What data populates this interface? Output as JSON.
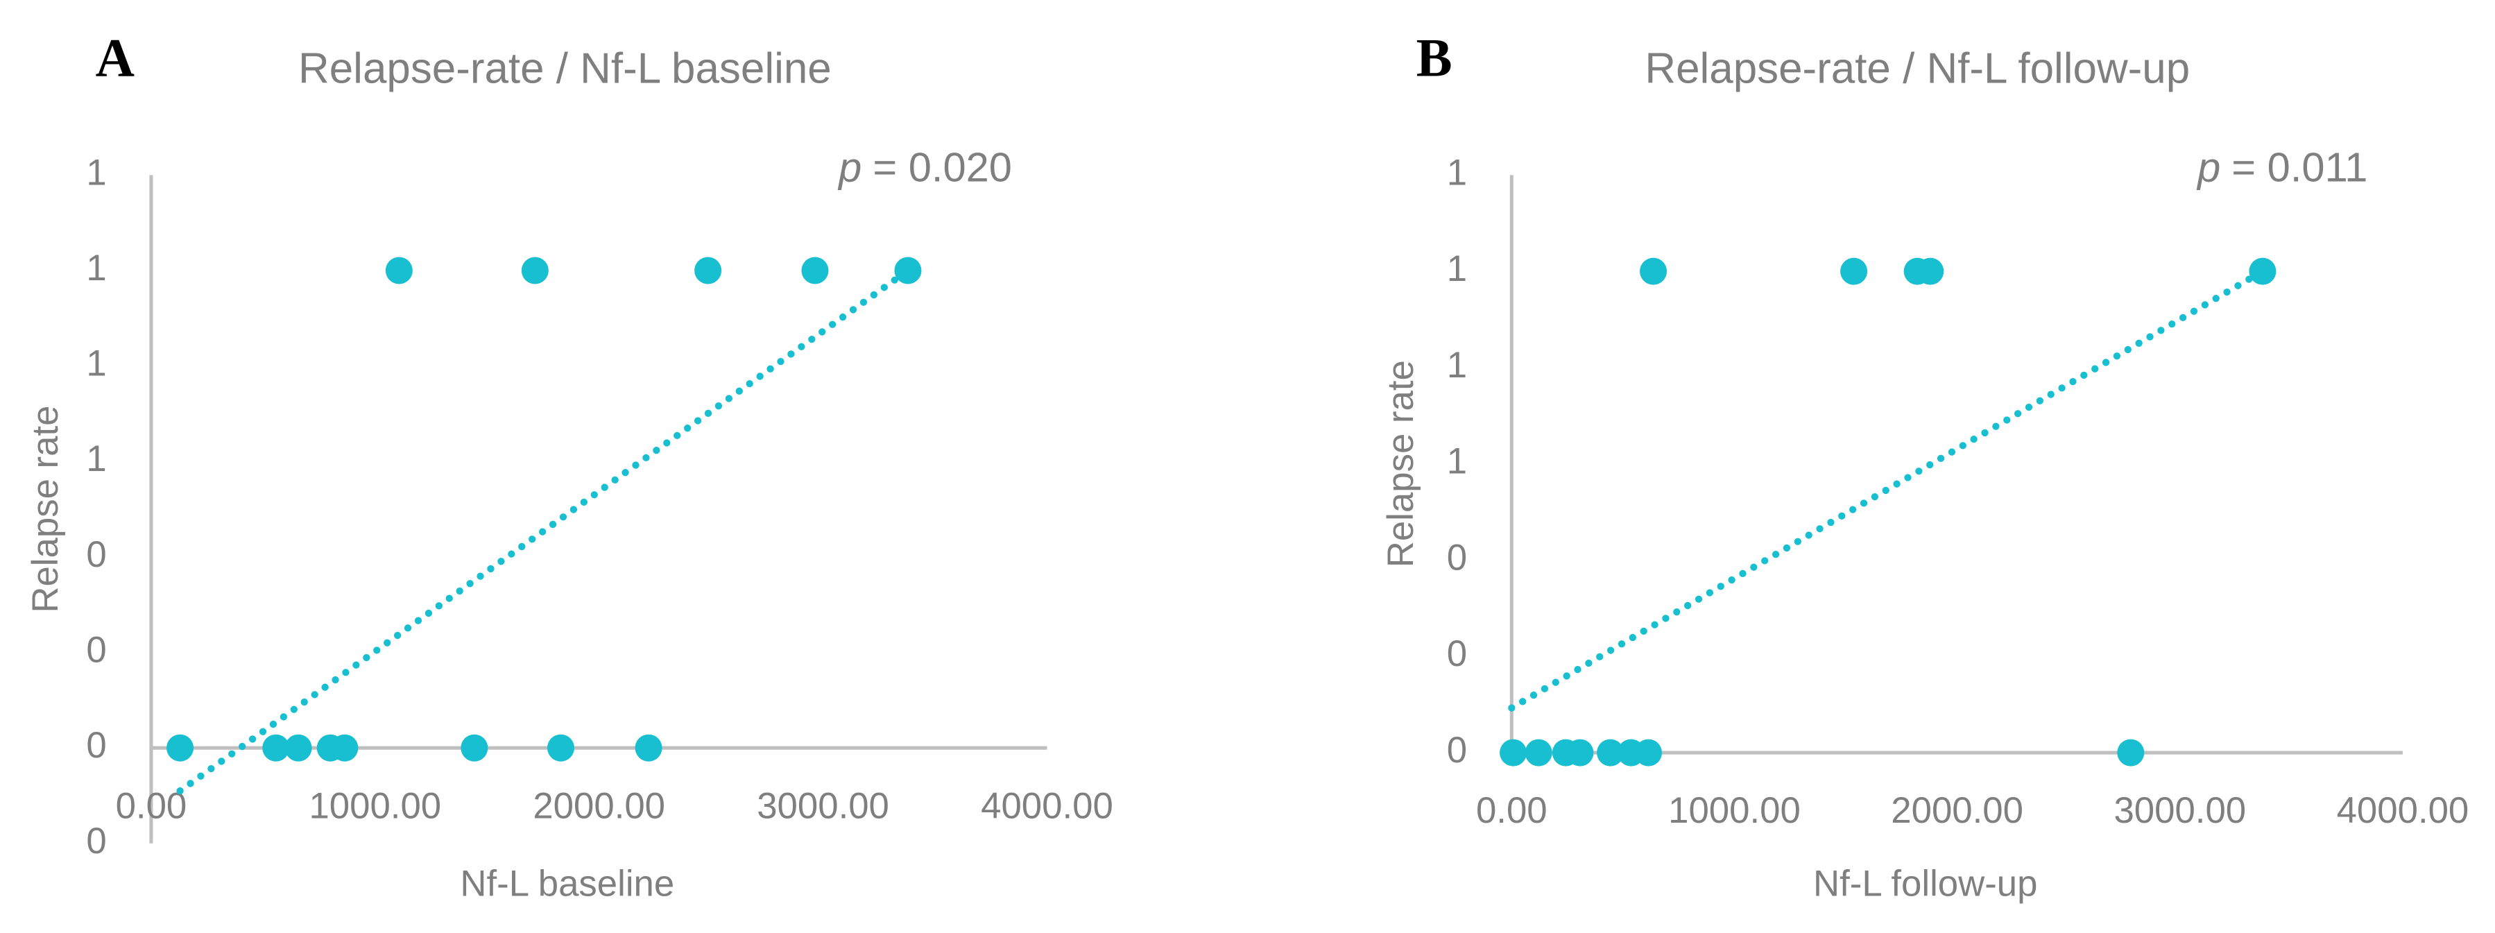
{
  "chart_data": [
    {
      "type": "scatter",
      "panel": "A",
      "title": "Relapse-rate / Nf-L baseline",
      "x_label": "Nf-L baseline",
      "y_label": "Relapse rate",
      "annotation": {
        "symbol": "p",
        "text": "= 0.020"
      },
      "series": [
        {
          "color": "#17bfd0",
          "x": [
            1107,
            1714,
            2486,
            2964,
            3379,
            129,
            557,
            657,
            800,
            864,
            1443,
            1829,
            2221
          ],
          "y": [
            1,
            1,
            1,
            1,
            1,
            0,
            0,
            0,
            0,
            0,
            0,
            0,
            0
          ]
        }
      ],
      "trendline": {
        "color": "#17bfd0",
        "style": "dotted",
        "x": [
          129,
          3379
        ],
        "y": [
          -0.09,
          1.0
        ]
      },
      "xlim": [
        0,
        4000
      ],
      "xticks": [
        {
          "value": 0,
          "label": "0.00"
        },
        {
          "value": 1000,
          "label": "1000.00"
        },
        {
          "value": 2000,
          "label": "2000.00"
        },
        {
          "value": 3000,
          "label": "3000.00"
        },
        {
          "value": 4000,
          "label": "4000.00"
        }
      ],
      "ylim": [
        -0.2,
        1.2
      ],
      "yticks": [
        {
          "value": -0.2,
          "label": "0"
        },
        0,
        {
          "value": 0.2,
          "label": "0"
        },
        {
          "value": 0.4,
          "label": "0"
        },
        {
          "value": 0.6,
          "label": "1"
        },
        {
          "value": 0.8,
          "label": "1"
        },
        1,
        {
          "value": 1.2,
          "label": "1"
        }
      ]
    },
    {
      "type": "scatter",
      "panel": "B",
      "title": "Relapse-rate / Nf-L follow-up",
      "x_label": "Nf-L follow-up",
      "y_label": "Relapse rate",
      "annotation": {
        "symbol": "p",
        "text": "= 0.011"
      },
      "series": [
        {
          "color": "#17bfd0",
          "x": [
            636,
            1536,
            1821,
            1879,
            3371,
            7,
            121,
            243,
            307,
            443,
            536,
            614,
            2779
          ],
          "y": [
            1,
            1,
            1,
            1,
            1,
            0,
            0,
            0,
            0,
            0,
            0,
            0,
            0
          ]
        }
      ],
      "trendline": {
        "color": "#17bfd0",
        "style": "dotted",
        "x": [
          0,
          3371
        ],
        "y": [
          0.093,
          1.0
        ]
      },
      "xlim": [
        0,
        4000
      ],
      "xticks": [
        {
          "value": 0,
          "label": "0.00"
        },
        {
          "value": 1000,
          "label": "1000.00"
        },
        {
          "value": 2000,
          "label": "2000.00"
        },
        {
          "value": 3000,
          "label": "3000.00"
        },
        {
          "value": 4000,
          "label": "4000.00"
        }
      ],
      "ylim": [
        0,
        1.2
      ],
      "yticks": [
        0,
        {
          "value": 0.2,
          "label": "0"
        },
        {
          "value": 0.4,
          "label": "0"
        },
        {
          "value": 0.6,
          "label": "1"
        },
        {
          "value": 0.8,
          "label": "1"
        },
        1,
        {
          "value": 1.2,
          "label": "1"
        }
      ]
    }
  ]
}
